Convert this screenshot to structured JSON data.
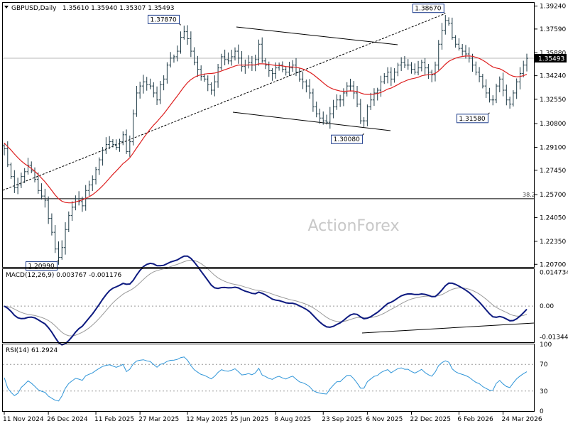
{
  "header": {
    "symbol": "GBPUSD,Daily",
    "ohlc": "1.35610 1.35940 1.35307 1.35493"
  },
  "watermark": "ActionForex",
  "chart_data": [
    {
      "type": "candlestick",
      "ylim": [
        1.2051,
        1.3947
      ],
      "yticks": [
        "1.39240",
        "1.37590",
        "1.35880",
        "1.34240",
        "1.32550",
        "1.30800",
        "1.29100",
        "1.27450",
        "1.25700",
        "1.24050",
        "1.22350",
        "1.20700"
      ],
      "ytick_values": [
        1.3924,
        1.3759,
        1.3588,
        1.3424,
        1.3255,
        1.308,
        1.291,
        1.2745,
        1.257,
        1.2405,
        1.2235,
        1.207
      ],
      "current_price": "1.35493",
      "current_value": 1.35493,
      "fib_label": "38.2",
      "fib_value": 1.2541,
      "annotations": [
        {
          "text": "1.37870",
          "date_index": 52,
          "value": 1.3787
        },
        {
          "text": "1.30080",
          "date_index": 106,
          "value": 1.3008
        },
        {
          "text": "1.38670",
          "date_index": 130,
          "value": 1.3867
        },
        {
          "text": "1.31580",
          "date_index": 143,
          "value": 1.3158
        },
        {
          "text": "1.20990",
          "date_index": 16,
          "value": 1.2099
        }
      ],
      "closes": [
        1.29,
        1.2785,
        1.27,
        1.262,
        1.264,
        1.27,
        1.2735,
        1.278,
        1.274,
        1.268,
        1.26,
        1.256,
        1.253,
        1.24,
        1.23,
        1.218,
        1.212,
        1.219,
        1.232,
        1.242,
        1.248,
        1.254,
        1.252,
        1.249,
        1.26,
        1.264,
        1.268,
        1.275,
        1.282,
        1.289,
        1.293,
        1.295,
        1.293,
        1.291,
        1.295,
        1.3,
        1.288,
        1.295,
        1.315,
        1.33,
        1.335,
        1.338,
        1.336,
        1.335,
        1.33,
        1.325,
        1.336,
        1.34,
        1.35,
        1.355,
        1.356,
        1.36,
        1.37,
        1.374,
        1.369,
        1.36,
        1.352,
        1.347,
        1.342,
        1.34,
        1.336,
        1.332,
        1.338,
        1.348,
        1.356,
        1.354,
        1.353,
        1.356,
        1.36,
        1.355,
        1.349,
        1.35,
        1.352,
        1.35,
        1.354,
        1.365,
        1.353,
        1.35,
        1.346,
        1.344,
        1.348,
        1.35,
        1.347,
        1.345,
        1.348,
        1.35,
        1.345,
        1.34,
        1.338,
        1.335,
        1.33,
        1.32,
        1.315,
        1.312,
        1.31,
        1.309,
        1.315,
        1.32,
        1.325,
        1.325,
        1.33,
        1.335,
        1.335,
        1.33,
        1.322,
        1.31,
        1.31,
        1.32,
        1.325,
        1.33,
        1.332,
        1.338,
        1.342,
        1.345,
        1.34,
        1.345,
        1.35,
        1.352,
        1.35,
        1.35,
        1.347,
        1.345,
        1.348,
        1.352,
        1.348,
        1.345,
        1.343,
        1.35,
        1.365,
        1.375,
        1.382,
        1.38,
        1.37,
        1.365,
        1.362,
        1.36,
        1.358,
        1.355,
        1.35,
        1.345,
        1.342,
        1.335,
        1.33,
        1.325,
        1.325,
        1.335,
        1.34,
        1.332,
        1.325,
        1.322,
        1.33,
        1.338,
        1.344,
        1.35,
        1.3549
      ],
      "ma_values": [
        1.294,
        1.2915,
        1.289,
        1.2862,
        1.2836,
        1.2812,
        1.2792,
        1.2775,
        1.2758,
        1.2738,
        1.2714,
        1.2688,
        1.2662,
        1.2632,
        1.26,
        1.2568,
        1.2541,
        1.2523,
        1.2514,
        1.2511,
        1.2512,
        1.2518,
        1.2525,
        1.2532,
        1.2543,
        1.2555,
        1.257,
        1.2588,
        1.261,
        1.2634,
        1.266,
        1.2688,
        1.2715,
        1.274,
        1.2766,
        1.2793,
        1.2812,
        1.2835,
        1.2868,
        1.2905,
        1.294,
        1.2975,
        1.3008,
        1.304,
        1.3069,
        1.3094,
        1.3122,
        1.315,
        1.3182,
        1.3215,
        1.3247,
        1.3278,
        1.3312,
        1.3345,
        1.3374,
        1.3396,
        1.3412,
        1.3424,
        1.343,
        1.3436,
        1.3439,
        1.344,
        1.3443,
        1.3449,
        1.3458,
        1.3467,
        1.3475,
        1.3484,
        1.3494,
        1.35,
        1.35,
        1.35,
        1.3501,
        1.3501,
        1.3502,
        1.3509,
        1.3509,
        1.3508,
        1.3505,
        1.3501,
        1.3498,
        1.3497,
        1.3494,
        1.349,
        1.3488,
        1.3487,
        1.3484,
        1.3479,
        1.3472,
        1.3462,
        1.3449,
        1.3433,
        1.3414,
        1.3394,
        1.3373,
        1.3353,
        1.3338,
        1.3327,
        1.332,
        1.3314,
        1.3312,
        1.3313,
        1.3315,
        1.3314,
        1.331,
        1.33,
        1.3292,
        1.329,
        1.329,
        1.3292,
        1.3296,
        1.3304,
        1.3315,
        1.3328,
        1.3335,
        1.3347,
        1.336,
        1.3374,
        1.3384,
        1.3394,
        1.3401,
        1.3406,
        1.3413,
        1.3423,
        1.3428,
        1.3431,
        1.3433,
        1.344,
        1.3458,
        1.3481,
        1.3506,
        1.3527,
        1.354,
        1.355,
        1.3557,
        1.3562,
        1.3565,
        1.3566,
        1.3563,
        1.3556,
        1.3548,
        1.3535,
        1.352,
        1.3502,
        1.3487,
        1.3479,
        1.3474,
        1.3462,
        1.3446,
        1.343,
        1.342,
        1.3416,
        1.3418,
        1.3424,
        1.3434
      ],
      "macd_label": "MACD(12,26,9) 0.003767 -0.001176",
      "macd_ylim": [
        -0.0158,
        0.0162
      ],
      "macd_ticks": [
        "0.014734",
        "0.00",
        "-0.013442"
      ],
      "macd_tick_values": [
        0.014734,
        0,
        -0.013442
      ],
      "rsi_label": "RSI(14) 61.2924",
      "rsi_ylim": [
        0,
        100
      ],
      "rsi_ticks": [
        "100",
        "70",
        "30",
        "0"
      ],
      "rsi_tick_values": [
        100,
        70,
        30,
        0
      ],
      "x_labels": [
        "11 Nov 2024",
        "26 Dec 2024",
        "11 Feb 2025",
        "27 Mar 2025",
        "12 May 2025",
        "25 Jun 2025",
        "8 Aug 2025",
        "23 Sep 2025",
        "6 Nov 2025",
        "22 Dec 2025",
        "6 Feb 2026",
        "24 Mar 2026"
      ],
      "x_label_indices": [
        0,
        13,
        27,
        40,
        54,
        67,
        80,
        94,
        107,
        120,
        134,
        147
      ]
    }
  ]
}
